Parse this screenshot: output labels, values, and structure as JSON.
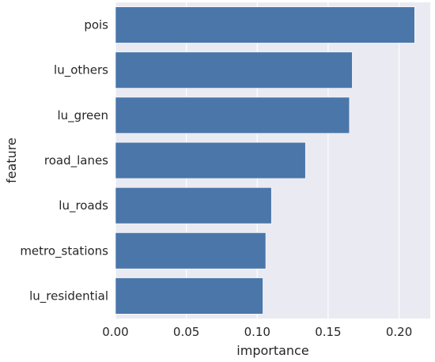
{
  "chart_data": {
    "type": "bar",
    "orientation": "horizontal",
    "categories": [
      "pois",
      "lu_others",
      "lu_green",
      "road_lanes",
      "lu_roads",
      "metro_stations",
      "lu_residential"
    ],
    "values": [
      0.211,
      0.167,
      0.165,
      0.134,
      0.11,
      0.106,
      0.104
    ],
    "xlabel": "importance",
    "ylabel": "feature",
    "xlim": [
      0,
      0.222
    ],
    "xticks": [
      0.0,
      0.05,
      0.1,
      0.15,
      0.2
    ],
    "xtick_labels": [
      "0.00",
      "0.05",
      "0.10",
      "0.15",
      "0.20"
    ],
    "grid": true,
    "colors": {
      "bar": "#4a76aa",
      "plot_background": "#eaeaf2",
      "grid": "#ffffff"
    }
  }
}
